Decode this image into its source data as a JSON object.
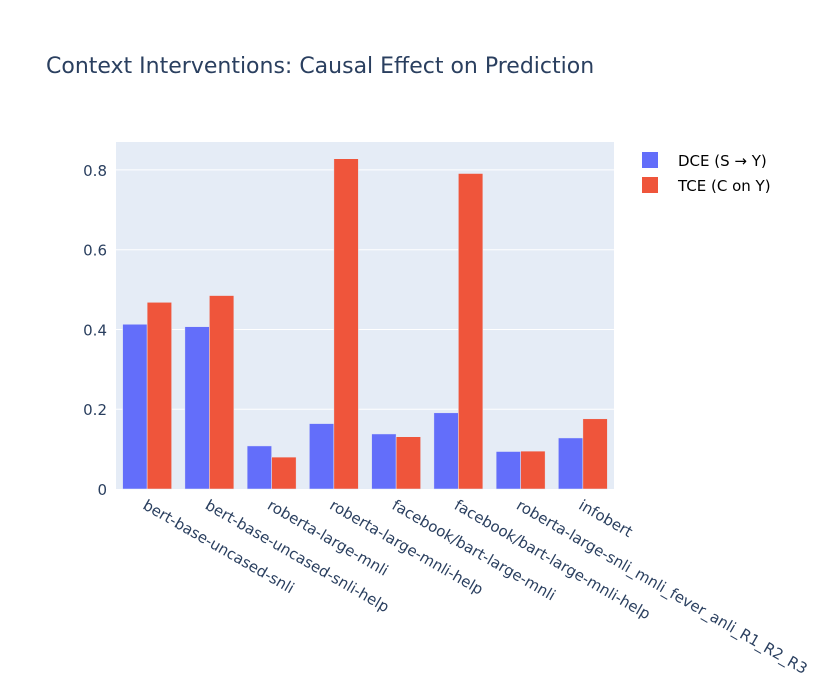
{
  "chart_data": {
    "type": "bar",
    "title": "Context Interventions: Causal Effect on Prediction",
    "xlabel": "",
    "ylabel": "",
    "ylim": [
      0,
      0.87
    ],
    "yticks": [
      0,
      0.2,
      0.4,
      0.6,
      0.8
    ],
    "ytick_labels": [
      "0",
      "0.2",
      "0.4",
      "0.6",
      "0.8"
    ],
    "categories": [
      "bert-base-uncased-snli",
      "bert-base-uncased-snli-help",
      "roberta-large-mnli",
      "roberta-large-mnli-help",
      "facebook/bart-large-mnli",
      "facebook/bart-large-mnli-help",
      "roberta-large-snli_mnli_fever_anli_R1_R2_R3",
      "infobert"
    ],
    "series": [
      {
        "name": "DCE (S → Y)",
        "color": "#636efa",
        "values": [
          0.413,
          0.407,
          0.108,
          0.164,
          0.138,
          0.191,
          0.094,
          0.128
        ]
      },
      {
        "name": "TCE (C on Y)",
        "color": "#ef553b",
        "values": [
          0.468,
          0.485,
          0.08,
          0.828,
          0.131,
          0.791,
          0.095,
          0.176
        ]
      }
    ],
    "grid": true,
    "legend_position": "top-right",
    "plot_background": "#e5ecf6"
  }
}
